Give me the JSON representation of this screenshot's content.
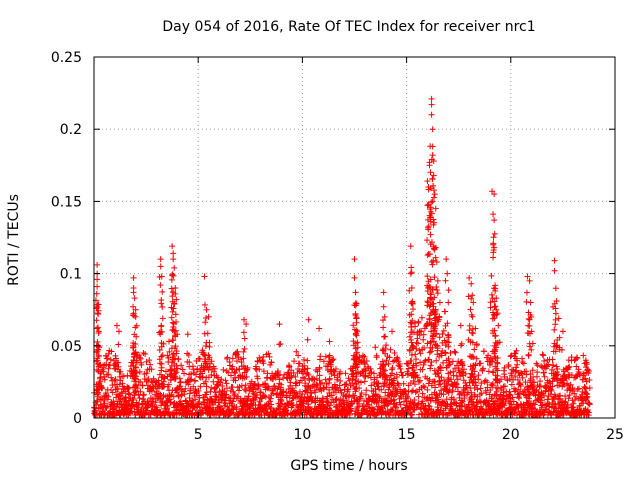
{
  "chart_data": {
    "type": "scatter",
    "title": "Day 054 of 2016, Rate Of TEC Index for receiver nrc1",
    "xlabel": "GPS time / hours",
    "ylabel": "ROTI / TECUs",
    "xlim": [
      0,
      25
    ],
    "ylim": [
      0,
      0.25
    ],
    "x_ticks": [
      0,
      5,
      10,
      15,
      20,
      25
    ],
    "y_ticks": [
      0,
      0.05,
      0.1,
      0.15,
      0.2,
      0.25
    ],
    "x_tick_labels": [
      "0",
      "5",
      "10",
      "15",
      "20",
      "25"
    ],
    "y_tick_labels": [
      "0",
      "0.05",
      "0.1",
      "0.15",
      "0.2",
      "0.25"
    ],
    "grid": true,
    "marker": "+",
    "marker_color": "#ff0000",
    "series": [
      {
        "name": "ROTI",
        "x_range": [
          0,
          23.8
        ],
        "typical_max": 0.045,
        "notable_points": [
          {
            "x": 0.15,
            "y": 0.106
          },
          {
            "x": 0.15,
            "y": 0.1
          },
          {
            "x": 0.15,
            "y": 0.096
          },
          {
            "x": 0.15,
            "y": 0.091
          },
          {
            "x": 0.2,
            "y": 0.072
          },
          {
            "x": 0.25,
            "y": 0.049
          },
          {
            "x": 1.1,
            "y": 0.064
          },
          {
            "x": 1.2,
            "y": 0.06
          },
          {
            "x": 1.9,
            "y": 0.097
          },
          {
            "x": 1.9,
            "y": 0.09
          },
          {
            "x": 1.9,
            "y": 0.087
          },
          {
            "x": 1.95,
            "y": 0.083
          },
          {
            "x": 2.0,
            "y": 0.075
          },
          {
            "x": 2.0,
            "y": 0.07
          },
          {
            "x": 3.2,
            "y": 0.11
          },
          {
            "x": 3.2,
            "y": 0.105
          },
          {
            "x": 3.25,
            "y": 0.098
          },
          {
            "x": 3.3,
            "y": 0.069
          },
          {
            "x": 3.6,
            "y": 0.053
          },
          {
            "x": 3.75,
            "y": 0.119
          },
          {
            "x": 3.8,
            "y": 0.114
          },
          {
            "x": 3.8,
            "y": 0.11
          },
          {
            "x": 3.85,
            "y": 0.104
          },
          {
            "x": 3.9,
            "y": 0.09
          },
          {
            "x": 3.9,
            "y": 0.086
          },
          {
            "x": 3.95,
            "y": 0.082
          },
          {
            "x": 4.5,
            "y": 0.058
          },
          {
            "x": 5.3,
            "y": 0.098
          },
          {
            "x": 5.4,
            "y": 0.075
          },
          {
            "x": 5.5,
            "y": 0.07
          },
          {
            "x": 7.2,
            "y": 0.068
          },
          {
            "x": 7.3,
            "y": 0.065
          },
          {
            "x": 8.9,
            "y": 0.065
          },
          {
            "x": 10.3,
            "y": 0.068
          },
          {
            "x": 10.8,
            "y": 0.062
          },
          {
            "x": 11.3,
            "y": 0.053
          },
          {
            "x": 12.5,
            "y": 0.11
          },
          {
            "x": 12.5,
            "y": 0.097
          },
          {
            "x": 12.55,
            "y": 0.087
          },
          {
            "x": 12.6,
            "y": 0.079
          },
          {
            "x": 12.6,
            "y": 0.069
          },
          {
            "x": 12.6,
            "y": 0.066
          },
          {
            "x": 13.5,
            "y": 0.049
          },
          {
            "x": 13.9,
            "y": 0.087
          },
          {
            "x": 13.9,
            "y": 0.077
          },
          {
            "x": 13.95,
            "y": 0.07
          },
          {
            "x": 14.3,
            "y": 0.06
          },
          {
            "x": 15.2,
            "y": 0.119
          },
          {
            "x": 15.2,
            "y": 0.1
          },
          {
            "x": 15.25,
            "y": 0.09
          },
          {
            "x": 15.3,
            "y": 0.079
          },
          {
            "x": 15.4,
            "y": 0.066
          },
          {
            "x": 16.0,
            "y": 0.164
          },
          {
            "x": 16.05,
            "y": 0.16
          },
          {
            "x": 16.05,
            "y": 0.148
          },
          {
            "x": 16.1,
            "y": 0.177
          },
          {
            "x": 16.1,
            "y": 0.175
          },
          {
            "x": 16.15,
            "y": 0.139
          },
          {
            "x": 16.15,
            "y": 0.127
          },
          {
            "x": 16.2,
            "y": 0.221
          },
          {
            "x": 16.2,
            "y": 0.217
          },
          {
            "x": 16.2,
            "y": 0.21
          },
          {
            "x": 16.25,
            "y": 0.2
          },
          {
            "x": 16.25,
            "y": 0.188
          },
          {
            "x": 16.3,
            "y": 0.178
          },
          {
            "x": 16.3,
            "y": 0.168
          },
          {
            "x": 16.35,
            "y": 0.155
          },
          {
            "x": 16.4,
            "y": 0.145
          },
          {
            "x": 16.4,
            "y": 0.118
          },
          {
            "x": 16.45,
            "y": 0.108
          },
          {
            "x": 16.5,
            "y": 0.095
          },
          {
            "x": 16.6,
            "y": 0.08
          },
          {
            "x": 16.9,
            "y": 0.11
          },
          {
            "x": 16.95,
            "y": 0.1
          },
          {
            "x": 17.0,
            "y": 0.08
          },
          {
            "x": 17.6,
            "y": 0.064
          },
          {
            "x": 18.0,
            "y": 0.097
          },
          {
            "x": 18.1,
            "y": 0.093
          },
          {
            "x": 18.15,
            "y": 0.085
          },
          {
            "x": 18.2,
            "y": 0.08
          },
          {
            "x": 18.3,
            "y": 0.062
          },
          {
            "x": 19.1,
            "y": 0.157
          },
          {
            "x": 19.2,
            "y": 0.155
          },
          {
            "x": 19.2,
            "y": 0.137
          },
          {
            "x": 19.15,
            "y": 0.12
          },
          {
            "x": 19.2,
            "y": 0.118
          },
          {
            "x": 19.25,
            "y": 0.088
          },
          {
            "x": 19.3,
            "y": 0.083
          },
          {
            "x": 19.3,
            "y": 0.075
          },
          {
            "x": 19.4,
            "y": 0.064
          },
          {
            "x": 20.8,
            "y": 0.098
          },
          {
            "x": 20.9,
            "y": 0.095
          },
          {
            "x": 20.95,
            "y": 0.08
          },
          {
            "x": 21.0,
            "y": 0.06
          },
          {
            "x": 22.1,
            "y": 0.109
          },
          {
            "x": 22.1,
            "y": 0.102
          },
          {
            "x": 22.2,
            "y": 0.081
          },
          {
            "x": 22.3,
            "y": 0.069
          },
          {
            "x": 22.5,
            "y": 0.06
          },
          {
            "x": 23.6,
            "y": 0.04
          }
        ]
      }
    ]
  }
}
